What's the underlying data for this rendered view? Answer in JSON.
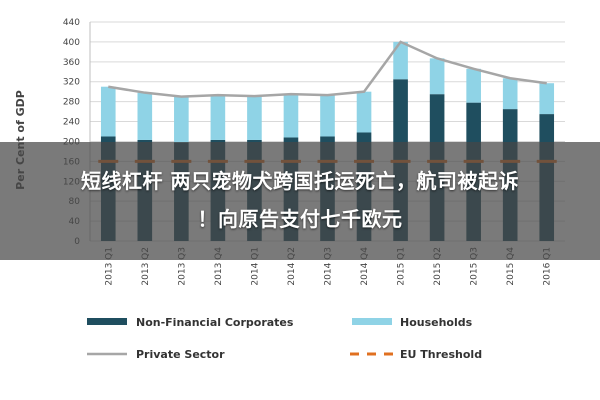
{
  "chart_data": {
    "type": "bar",
    "stacked": true,
    "ylabel": "Per Cent of GDP",
    "ylim": [
      0,
      440
    ],
    "yticks": [
      0,
      40,
      80,
      120,
      160,
      200,
      240,
      280,
      320,
      360,
      400,
      440
    ],
    "grid": true,
    "legend_position": "bottom",
    "categories": [
      "2013 Q1",
      "2013 Q2",
      "2013 Q3",
      "2013 Q4",
      "2014 Q1",
      "2014 Q2",
      "2014 Q3",
      "2014 Q4",
      "2015 Q1",
      "2015 Q2",
      "2015 Q3",
      "2015 Q4",
      "2016 Q1"
    ],
    "series": [
      {
        "name": "Non-Financial Corporates",
        "kind": "bar",
        "color": "#1f4e5f",
        "values": [
          210,
          203,
          198,
          203,
          203,
          208,
          210,
          218,
          325,
          295,
          278,
          265,
          255
        ]
      },
      {
        "name": "Households",
        "kind": "bar",
        "color": "#8fd3e6",
        "values": [
          100,
          95,
          92,
          90,
          88,
          87,
          83,
          82,
          75,
          72,
          68,
          62,
          62
        ]
      },
      {
        "name": "Private Sector",
        "kind": "line",
        "color": "#a6a6a6",
        "values": [
          310,
          298,
          290,
          293,
          291,
          295,
          293,
          300,
          400,
          367,
          346,
          327,
          317
        ]
      },
      {
        "name": "EU Threshold",
        "kind": "dashed-line",
        "color": "#e07020",
        "values": [
          160,
          160,
          160,
          160,
          160,
          160,
          160,
          160,
          160,
          160,
          160,
          160,
          160
        ]
      }
    ]
  },
  "overlay": {
    "line1": "短线杠杆 两只宠物犬跨国托运死亡，航司被起诉",
    "line2": "！向原告支付七千欧元"
  }
}
